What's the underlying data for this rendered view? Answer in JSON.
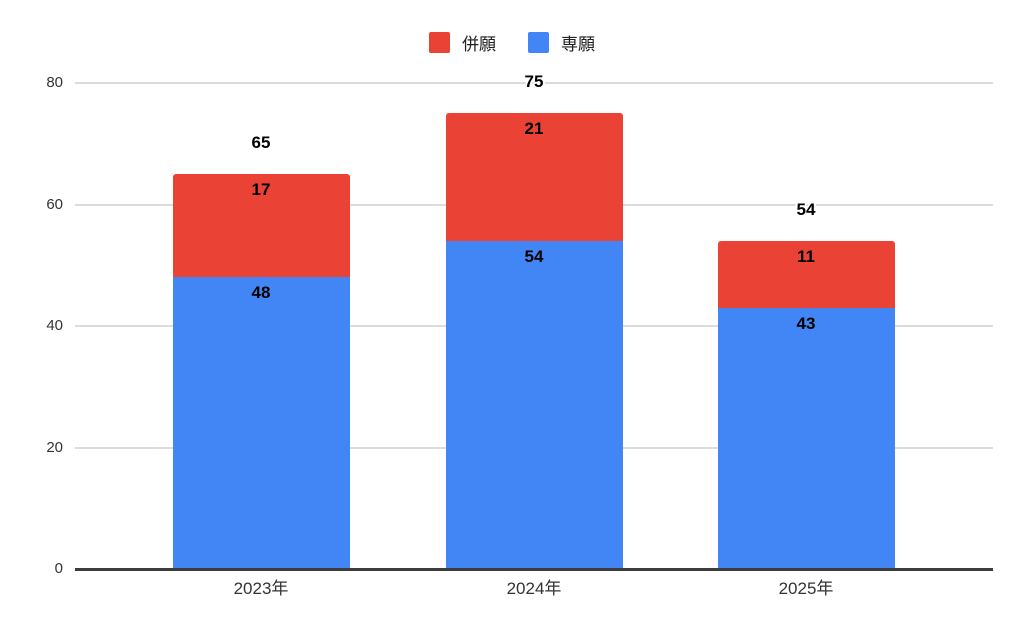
{
  "chart_data": {
    "type": "bar",
    "stacked": true,
    "title": "",
    "categories": [
      "2023年",
      "2024年",
      "2025年"
    ],
    "series": [
      {
        "name": "併願",
        "color": "#EA4335",
        "stack_position": "top",
        "values": [
          17,
          21,
          11
        ]
      },
      {
        "name": "専願",
        "color": "#4285F4",
        "stack_position": "bottom",
        "values": [
          48,
          54,
          43
        ]
      }
    ],
    "totals": [
      65,
      75,
      54
    ],
    "xlabel": "",
    "ylabel": "",
    "ylim": [
      0,
      80
    ],
    "yticks": [
      0,
      20,
      40,
      60,
      80
    ],
    "legend_position": "top",
    "grid": true
  },
  "styles": {
    "background": "#ffffff",
    "grid_color": "#dcdcdc",
    "axis_color": "#3c3c3c",
    "tick_label_color": "#333333",
    "data_label_color": "#000000"
  }
}
